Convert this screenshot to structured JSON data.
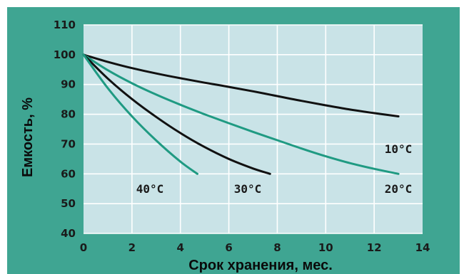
{
  "chart_data": {
    "type": "line",
    "xlabel": "Срок хранения, мес.",
    "ylabel": "Емкость, %",
    "xlim": [
      0,
      14
    ],
    "ylim": [
      40,
      110
    ],
    "x_ticks": [
      "0",
      "2",
      "4",
      "6",
      "8",
      "10",
      "12",
      "14"
    ],
    "y_ticks": [
      "40",
      "50",
      "60",
      "70",
      "80",
      "90",
      "100",
      "110"
    ],
    "grid": true,
    "plot_background": "#c9e3e7",
    "frame_color": "#3fa592",
    "gridline_color": "#ffffff",
    "series": [
      {
        "name": "10°C",
        "color": "#111111",
        "x": [
          0,
          1,
          2,
          3,
          4,
          5,
          6,
          7,
          8,
          9,
          10,
          11,
          12,
          13
        ],
        "y": [
          100,
          97.6,
          95.5,
          93.7,
          92.1,
          90.6,
          89.2,
          87.7,
          86.1,
          84.5,
          83.0,
          81.6,
          80.4,
          79.3
        ]
      },
      {
        "name": "20°C",
        "color": "#1f9a82",
        "x": [
          0,
          1,
          2,
          3,
          4,
          5,
          6,
          7,
          8,
          9,
          10,
          11,
          12,
          13
        ],
        "y": [
          100,
          94.8,
          90.4,
          86.6,
          83.2,
          80.0,
          77.0,
          74.1,
          71.3,
          68.5,
          65.9,
          63.6,
          61.7,
          60.0
        ]
      },
      {
        "name": "30°C",
        "color": "#111111",
        "x": [
          0,
          1,
          2,
          3,
          4,
          5,
          6,
          7,
          7.7
        ],
        "y": [
          100,
          92.0,
          85.1,
          79.1,
          73.7,
          69.0,
          65.0,
          61.8,
          60.0
        ]
      },
      {
        "name": "40°C",
        "color": "#1f9a82",
        "x": [
          0,
          1,
          2,
          3,
          4,
          4.7
        ],
        "y": [
          100,
          88.8,
          79.3,
          71.2,
          64.1,
          60.0
        ]
      }
    ]
  }
}
